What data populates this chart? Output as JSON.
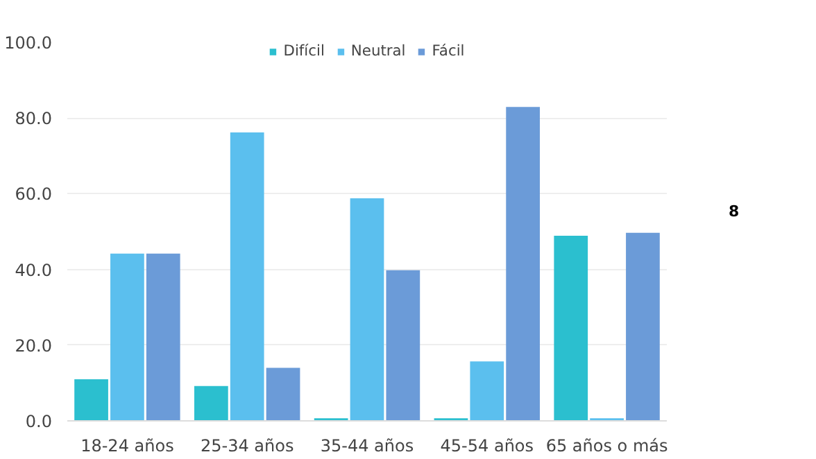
{
  "chart_data": {
    "type": "bar",
    "categories": [
      "18-24 años",
      "25-34 años",
      "35-44 años",
      "45-54 años",
      "65 años o más"
    ],
    "series": [
      {
        "name": "Difícil",
        "color": "#2bbfcf",
        "values": [
          11,
          9.2,
          0.7,
          0.7,
          48.9
        ]
      },
      {
        "name": "Neutral",
        "color": "#5bbfee",
        "values": [
          44.2,
          76.2,
          58.8,
          15.7,
          0.7
        ]
      },
      {
        "name": "Fácil",
        "color": "#6b9bd8",
        "values": [
          44.2,
          14.0,
          39.8,
          82.9,
          49.7
        ]
      }
    ],
    "ylim": [
      0,
      100
    ],
    "yticks": [
      {
        "value": 0,
        "label": "0.0"
      },
      {
        "value": 20,
        "label": "20.0"
      },
      {
        "value": 40,
        "label": "40.0"
      },
      {
        "value": 60,
        "label": "60.0"
      },
      {
        "value": 80,
        "label": "80.0"
      },
      {
        "value": 100,
        "label": "100.0"
      }
    ],
    "grid": "y",
    "legend": "top",
    "annotations": [
      "8"
    ]
  }
}
